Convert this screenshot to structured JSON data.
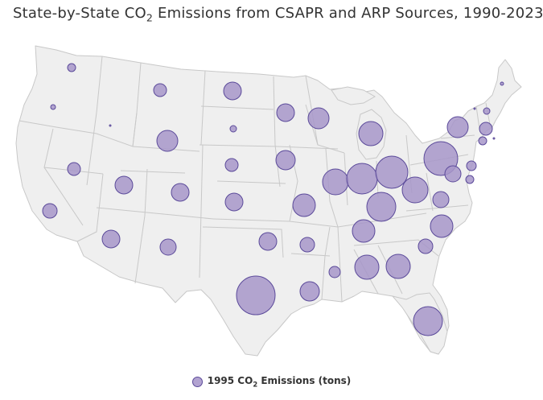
{
  "title": {
    "prefix": "State-by-State CO",
    "sub": "2",
    "suffix": " Emissions from CSAPR and ARP Sources, 1990-2023"
  },
  "legend": {
    "prefix": "1995 CO",
    "sub": "2",
    "suffix": " Emissions (tons)"
  },
  "colors": {
    "land": "#efefef",
    "border": "#c8c8c8",
    "bubble_fill": "#a797c9",
    "bubble_stroke": "#5b4a9a"
  },
  "bubbles": [
    {
      "state": "WA",
      "magnitude": 5
    },
    {
      "state": "OR",
      "magnitude": 3
    },
    {
      "state": "ID",
      "magnitude": 1
    },
    {
      "state": "MT",
      "magnitude": 8
    },
    {
      "state": "ND",
      "magnitude": 11
    },
    {
      "state": "SD",
      "magnitude": 4
    },
    {
      "state": "MN",
      "magnitude": 11
    },
    {
      "state": "WI",
      "magnitude": 13
    },
    {
      "state": "MI",
      "magnitude": 15
    },
    {
      "state": "WY",
      "magnitude": 13
    },
    {
      "state": "NE",
      "magnitude": 8
    },
    {
      "state": "IA",
      "magnitude": 12
    },
    {
      "state": "IL",
      "magnitude": 16
    },
    {
      "state": "IN",
      "magnitude": 19
    },
    {
      "state": "OH",
      "magnitude": 20
    },
    {
      "state": "PA",
      "magnitude": 21
    },
    {
      "state": "NY",
      "magnitude": 13
    },
    {
      "state": "NV",
      "magnitude": 8
    },
    {
      "state": "UT",
      "magnitude": 11
    },
    {
      "state": "CO",
      "magnitude": 11
    },
    {
      "state": "KS",
      "magnitude": 11
    },
    {
      "state": "MO",
      "magnitude": 14
    },
    {
      "state": "KY",
      "magnitude": 18
    },
    {
      "state": "WV",
      "magnitude": 16
    },
    {
      "state": "VA",
      "magnitude": 10
    },
    {
      "state": "MD",
      "magnitude": 10
    },
    {
      "state": "DE",
      "magnitude": 6
    },
    {
      "state": "NJ",
      "magnitude": 5
    },
    {
      "state": "CT",
      "magnitude": 5
    },
    {
      "state": "MA",
      "magnitude": 8
    },
    {
      "state": "RI",
      "magnitude": 1
    },
    {
      "state": "NH",
      "magnitude": 4
    },
    {
      "state": "VT",
      "magnitude": 1
    },
    {
      "state": "ME",
      "magnitude": 2
    },
    {
      "state": "CA",
      "magnitude": 9
    },
    {
      "state": "AZ",
      "magnitude": 11
    },
    {
      "state": "NM",
      "magnitude": 10
    },
    {
      "state": "OK",
      "magnitude": 11
    },
    {
      "state": "AR",
      "magnitude": 9
    },
    {
      "state": "TN",
      "magnitude": 14
    },
    {
      "state": "NC",
      "magnitude": 14
    },
    {
      "state": "SC",
      "magnitude": 9
    },
    {
      "state": "TX",
      "magnitude": 24
    },
    {
      "state": "LA",
      "magnitude": 12
    },
    {
      "state": "MS",
      "magnitude": 7
    },
    {
      "state": "AL",
      "magnitude": 15
    },
    {
      "state": "GA",
      "magnitude": 15
    },
    {
      "state": "FL",
      "magnitude": 18
    }
  ]
}
